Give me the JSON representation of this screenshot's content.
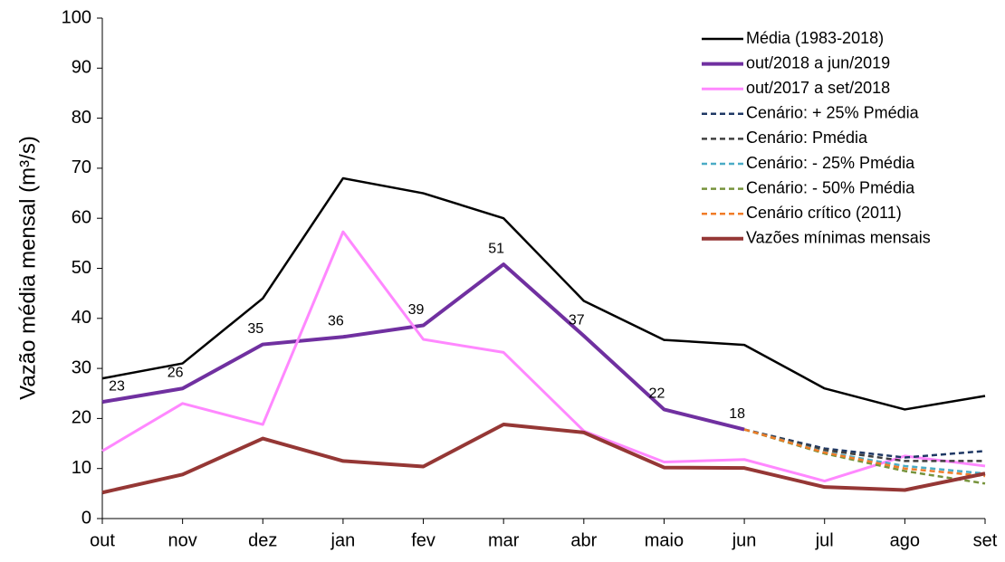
{
  "chart_data": {
    "type": "line",
    "y_label": "Vazão média mensal (m³/s)",
    "categories": [
      "out",
      "nov",
      "dez",
      "jan",
      "fev",
      "mar",
      "abr",
      "maio",
      "jun",
      "jul",
      "ago",
      "set"
    ],
    "ylim": [
      0,
      100
    ],
    "yticks": [
      0,
      10,
      20,
      30,
      40,
      50,
      60,
      70,
      80,
      90,
      100
    ],
    "grid": false,
    "legend": "upper right",
    "series": [
      {
        "name": "Média (1983-2018)",
        "color": "#000000",
        "line_width": 2.5,
        "dashed": false,
        "values": [
          28,
          31,
          44,
          68,
          65,
          60,
          43.5,
          35.7,
          34.7,
          26,
          21.8,
          24.5
        ]
      },
      {
        "name": "out/2018 a jun/2019",
        "color": "#7030a0",
        "line_width": 4,
        "dashed": false,
        "values": [
          23.3,
          26,
          34.8,
          36.3,
          38.6,
          50.8,
          36.5,
          21.8,
          17.8,
          null,
          null,
          null
        ],
        "value_labels": [
          "23",
          "26",
          "35",
          "36",
          "39",
          "51",
          "37",
          "22",
          "18",
          null,
          null,
          null
        ]
      },
      {
        "name": "out/2017 a set/2018",
        "color": "#ff88ff",
        "line_width": 3,
        "dashed": false,
        "values": [
          13.5,
          23,
          18.8,
          57.3,
          35.8,
          33.2,
          17.5,
          11.3,
          11.8,
          7.5,
          12.5,
          10.5
        ]
      },
      {
        "name": "Cenário: + 25% Pmédia",
        "color": "#1f3864",
        "line_width": 2.5,
        "dashed": true,
        "values": [
          null,
          null,
          null,
          null,
          null,
          null,
          null,
          null,
          17.8,
          14,
          12.2,
          13.5
        ]
      },
      {
        "name": "Cenário: Pmédia",
        "color": "#404040",
        "line_width": 2.5,
        "dashed": true,
        "values": [
          null,
          null,
          null,
          null,
          null,
          null,
          null,
          null,
          17.8,
          13.7,
          11.5,
          11.5
        ]
      },
      {
        "name": "Cenário: - 25% Pmédia",
        "color": "#4bacc6",
        "line_width": 2.5,
        "dashed": true,
        "values": [
          null,
          null,
          null,
          null,
          null,
          null,
          null,
          null,
          17.8,
          13.3,
          10.5,
          9
        ]
      },
      {
        "name": "Cenário: - 50% Pmédia",
        "color": "#77933c",
        "line_width": 2.5,
        "dashed": true,
        "values": [
          null,
          null,
          null,
          null,
          null,
          null,
          null,
          null,
          17.8,
          13,
          9.5,
          7
        ]
      },
      {
        "name": "Cenário crítico (2011)",
        "color": "#f07c28",
        "line_width": 2.5,
        "dashed": true,
        "values": [
          null,
          null,
          null,
          null,
          null,
          null,
          null,
          null,
          17.8,
          13.2,
          10,
          8.5
        ]
      },
      {
        "name": "Vazões mínimas mensais",
        "color": "#953735",
        "line_width": 4,
        "dashed": false,
        "values": [
          5.2,
          8.8,
          16,
          11.5,
          10.4,
          18.8,
          17.2,
          10.2,
          10.1,
          6.3,
          5.7,
          9
        ]
      }
    ]
  }
}
